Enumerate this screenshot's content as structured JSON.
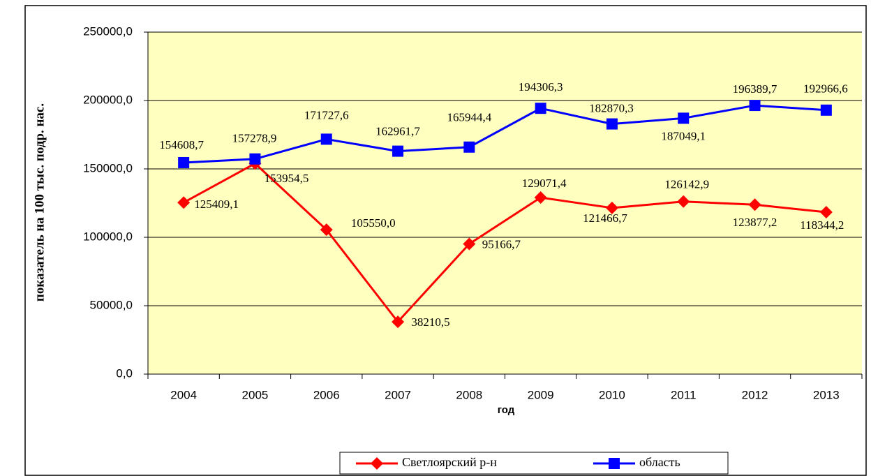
{
  "chart_data": {
    "type": "line",
    "xlabel": "год",
    "ylabel": "показатель на 100 тыс. подр. нас.",
    "categories": [
      "2004",
      "2005",
      "2006",
      "2007",
      "2008",
      "2009",
      "2010",
      "2011",
      "2012",
      "2013"
    ],
    "series": [
      {
        "name": "Светлоярский р-н",
        "color": "#ff0000",
        "marker": "diamond",
        "values": [
          125409.1,
          153954.5,
          105550.0,
          38210.5,
          95166.7,
          129071.4,
          121466.7,
          126142.9,
          123877.2,
          118344.2
        ],
        "value_labels": [
          "125409,1",
          "153954,5",
          "105550,0",
          "38210,5",
          "95166,7",
          "129071,4",
          "121466,7",
          "126142,9",
          "123877,2",
          "118344,2"
        ]
      },
      {
        "name": "область",
        "color": "#0000ff",
        "marker": "square",
        "values": [
          154608.7,
          157278.9,
          171727.6,
          162961.7,
          165944.4,
          194306.3,
          182870.3,
          187049.1,
          196389.7,
          192966.6
        ],
        "value_labels": [
          "154608,7",
          "157278,9",
          "171727,6",
          "162961,7",
          "165944,4",
          "194306,3",
          "182870,3",
          "187049,1",
          "196389,7",
          "192966,6"
        ]
      }
    ],
    "ylim": [
      0,
      250000
    ],
    "yticks": [
      {
        "value": 0,
        "label": "0,0"
      },
      {
        "value": 50000,
        "label": "50000,0"
      },
      {
        "value": 100000,
        "label": "100000,0"
      },
      {
        "value": 150000,
        "label": "150000,0"
      },
      {
        "value": 200000,
        "label": "200000,0"
      },
      {
        "value": 250000,
        "label": "250000,0"
      }
    ],
    "grid": true,
    "legend": "bottom"
  }
}
